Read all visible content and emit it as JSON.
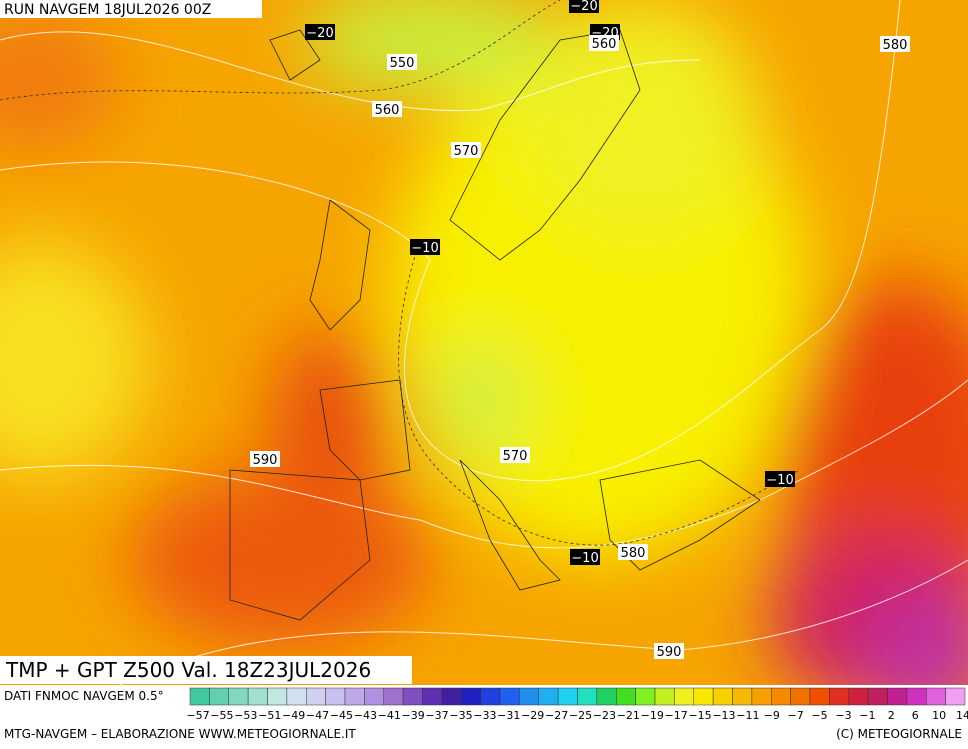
{
  "header": {
    "run": "RUN NAVGEM 18JUL2026 00Z",
    "title": "TMP + GPT Z500 Val. 18Z23JUL2026"
  },
  "map": {
    "contour_labels": [
      "−20",
      "−20",
      "−20",
      "560",
      "550",
      "580",
      "560",
      "570",
      "−10",
      "590",
      "570",
      "−10",
      "−10",
      "580",
      "590"
    ]
  },
  "legend": {
    "source": "DATI FNMOC NAVGEM 0.5°",
    "colors": [
      "#40c8a0",
      "#60d0b0",
      "#80d8c0",
      "#a0e0d0",
      "#c0e8e0",
      "#d0e0f0",
      "#d0d0f0",
      "#c8c0f0",
      "#c0a8e8",
      "#b090e0",
      "#a070d0",
      "#8050c0",
      "#6030b0",
      "#4020a0",
      "#2020c0",
      "#2040e0",
      "#2060f0",
      "#2090f0",
      "#20b0f0",
      "#20d0f0",
      "#20e0c0",
      "#20d060",
      "#40e020",
      "#80f020",
      "#c0f020",
      "#f0f020",
      "#f8e800",
      "#f8d000",
      "#f8b800",
      "#f8a000",
      "#f88800",
      "#f07000",
      "#f05000",
      "#e03020",
      "#d02040",
      "#c02060",
      "#c02090",
      "#d030c0",
      "#e060e0",
      "#f0a0f0"
    ],
    "labels": [
      "−57",
      "−55",
      "−53",
      "−51",
      "−49",
      "−47",
      "−45",
      "−43",
      "−41",
      "−39",
      "−37",
      "−35",
      "−33",
      "−31",
      "−29",
      "−27",
      "−25",
      "−23",
      "−21",
      "−19",
      "−17",
      "−15",
      "−13",
      "−11",
      "−9",
      "−7",
      "−5",
      "−3",
      "−1",
      "2",
      "6",
      "10",
      "14"
    ]
  },
  "footer": {
    "left": "MTG-NAVGEM – ELABORAZIONE WWW.METEOGIORNALE.IT",
    "right": "(C) METEOGIORNALE"
  }
}
